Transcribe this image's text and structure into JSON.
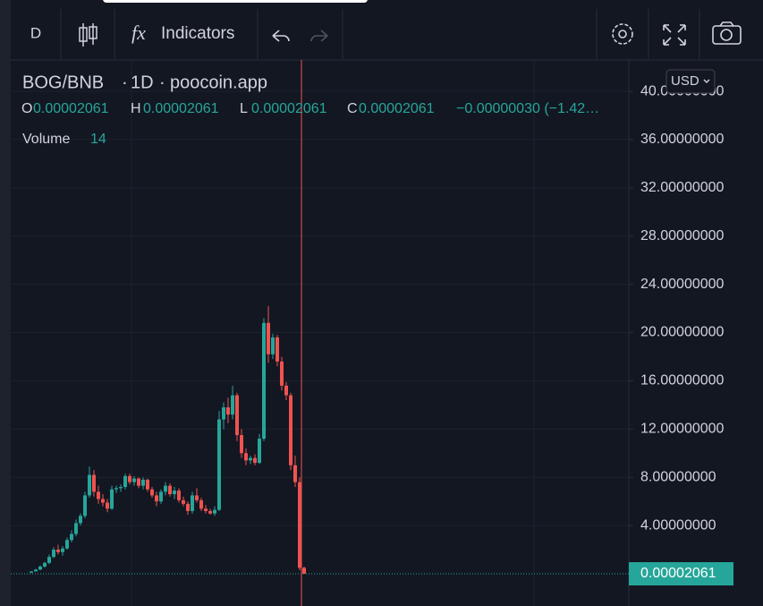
{
  "ui": {
    "toolbar": {
      "interval": "D",
      "indicators": "Indicators"
    },
    "legend": {
      "symbol": "BOG/BNB",
      "timeframe": "1D",
      "source": "poocoin.app",
      "o_label": "O",
      "o_value": "0.00002061",
      "h_label": "H",
      "h_value": "0.00002061",
      "l_label": "L",
      "l_value": "0.00002061",
      "c_label": "C",
      "c_value": "0.00002061",
      "change": "−0.00000030 (−1.42…",
      "volume_label": "Volume",
      "volume_value": "14"
    },
    "currency": "USD"
  },
  "chart_data": {
    "type": "candlestick",
    "up_color": "#26a69a",
    "down_color": "#ef5350",
    "ylim": [
      -2.67,
      42.6
    ],
    "yticks": [
      {
        "value": 4,
        "label": "4.00000000"
      },
      {
        "value": 8,
        "label": "8.00000000"
      },
      {
        "value": 12,
        "label": "12.00000000"
      },
      {
        "value": 16,
        "label": "16.00000000"
      },
      {
        "value": 20,
        "label": "20.00000000"
      },
      {
        "value": 24,
        "label": "24.00000000"
      },
      {
        "value": 28,
        "label": "28.00000000"
      },
      {
        "value": 32,
        "label": "32.00000000"
      },
      {
        "value": 36,
        "label": "36.00000000"
      },
      {
        "value": 40,
        "label": "40.00000000"
      }
    ],
    "last_price": {
      "value": 2.061e-05,
      "label": "0.00002061"
    },
    "candles": [
      [
        0.1,
        0.2,
        0.05,
        0.2
      ],
      [
        0.2,
        0.4,
        0.2,
        0.35
      ],
      [
        0.35,
        0.7,
        0.3,
        0.6
      ],
      [
        0.6,
        1.0,
        0.5,
        0.9
      ],
      [
        0.9,
        1.6,
        0.8,
        1.4
      ],
      [
        1.4,
        2.2,
        1.3,
        2.0
      ],
      [
        2.0,
        2.4,
        1.6,
        1.8
      ],
      [
        1.8,
        2.3,
        1.5,
        2.1
      ],
      [
        2.1,
        3.0,
        2.0,
        2.8
      ],
      [
        2.8,
        3.6,
        2.6,
        3.3
      ],
      [
        3.3,
        4.5,
        3.1,
        4.2
      ],
      [
        4.2,
        5.0,
        4.0,
        4.8
      ],
      [
        4.8,
        6.8,
        4.6,
        6.5
      ],
      [
        6.5,
        8.9,
        6.3,
        8.2
      ],
      [
        8.2,
        8.6,
        6.4,
        6.8
      ],
      [
        6.8,
        7.3,
        5.8,
        6.2
      ],
      [
        6.2,
        6.6,
        5.6,
        5.9
      ],
      [
        5.9,
        6.2,
        5.1,
        5.4
      ],
      [
        5.4,
        7.3,
        5.3,
        7.0
      ],
      [
        7.0,
        7.3,
        6.7,
        7.1
      ],
      [
        7.1,
        7.4,
        6.8,
        7.2
      ],
      [
        7.2,
        8.3,
        7.0,
        8.1
      ],
      [
        8.1,
        8.3,
        7.4,
        7.6
      ],
      [
        7.6,
        8.1,
        7.3,
        7.9
      ],
      [
        7.9,
        8.0,
        7.1,
        7.3
      ],
      [
        7.3,
        8.0,
        7.0,
        7.8
      ],
      [
        7.8,
        7.9,
        6.8,
        7.0
      ],
      [
        7.0,
        7.2,
        6.3,
        6.5
      ],
      [
        6.5,
        6.8,
        5.6,
        6.0
      ],
      [
        6.0,
        7.0,
        5.8,
        6.8
      ],
      [
        6.8,
        7.6,
        6.5,
        7.3
      ],
      [
        7.3,
        7.5,
        6.4,
        6.6
      ],
      [
        6.6,
        7.2,
        6.2,
        6.9
      ],
      [
        6.9,
        7.1,
        5.9,
        6.1
      ],
      [
        6.1,
        6.4,
        5.6,
        5.8
      ],
      [
        5.8,
        6.0,
        4.9,
        5.2
      ],
      [
        5.2,
        6.8,
        5.0,
        6.5
      ],
      [
        6.5,
        7.1,
        5.9,
        6.1
      ],
      [
        6.1,
        6.3,
        5.2,
        5.4
      ],
      [
        5.4,
        5.7,
        5.0,
        5.2
      ],
      [
        5.2,
        5.4,
        4.9,
        5.0
      ],
      [
        5.0,
        5.6,
        4.8,
        5.3
      ],
      [
        5.3,
        13.5,
        5.2,
        12.8
      ],
      [
        12.8,
        14.2,
        12.0,
        13.8
      ],
      [
        13.8,
        14.6,
        12.5,
        13.2
      ],
      [
        13.2,
        15.6,
        12.8,
        14.8
      ],
      [
        14.8,
        15.0,
        11.0,
        11.5
      ],
      [
        11.5,
        12.0,
        9.6,
        10.0
      ],
      [
        10.0,
        10.4,
        9.0,
        9.4
      ],
      [
        9.4,
        9.8,
        9.1,
        9.6
      ],
      [
        9.6,
        9.9,
        9.0,
        9.2
      ],
      [
        9.2,
        11.6,
        9.1,
        11.2
      ],
      [
        11.2,
        21.2,
        11.0,
        20.8
      ],
      [
        20.8,
        22.2,
        17.5,
        18.2
      ],
      [
        18.2,
        19.9,
        17.8,
        19.6
      ],
      [
        19.6,
        19.8,
        17.2,
        17.6
      ],
      [
        17.6,
        18.0,
        15.2,
        15.6
      ],
      [
        15.6,
        15.9,
        14.4,
        14.8
      ],
      [
        14.8,
        15.0,
        8.6,
        9.0
      ],
      [
        9.0,
        9.8,
        7.2,
        7.6
      ],
      [
        7.6,
        8.0,
        0.3,
        0.5
      ],
      [
        0.5,
        0.6,
        2e-05,
        2.061e-05
      ]
    ]
  }
}
